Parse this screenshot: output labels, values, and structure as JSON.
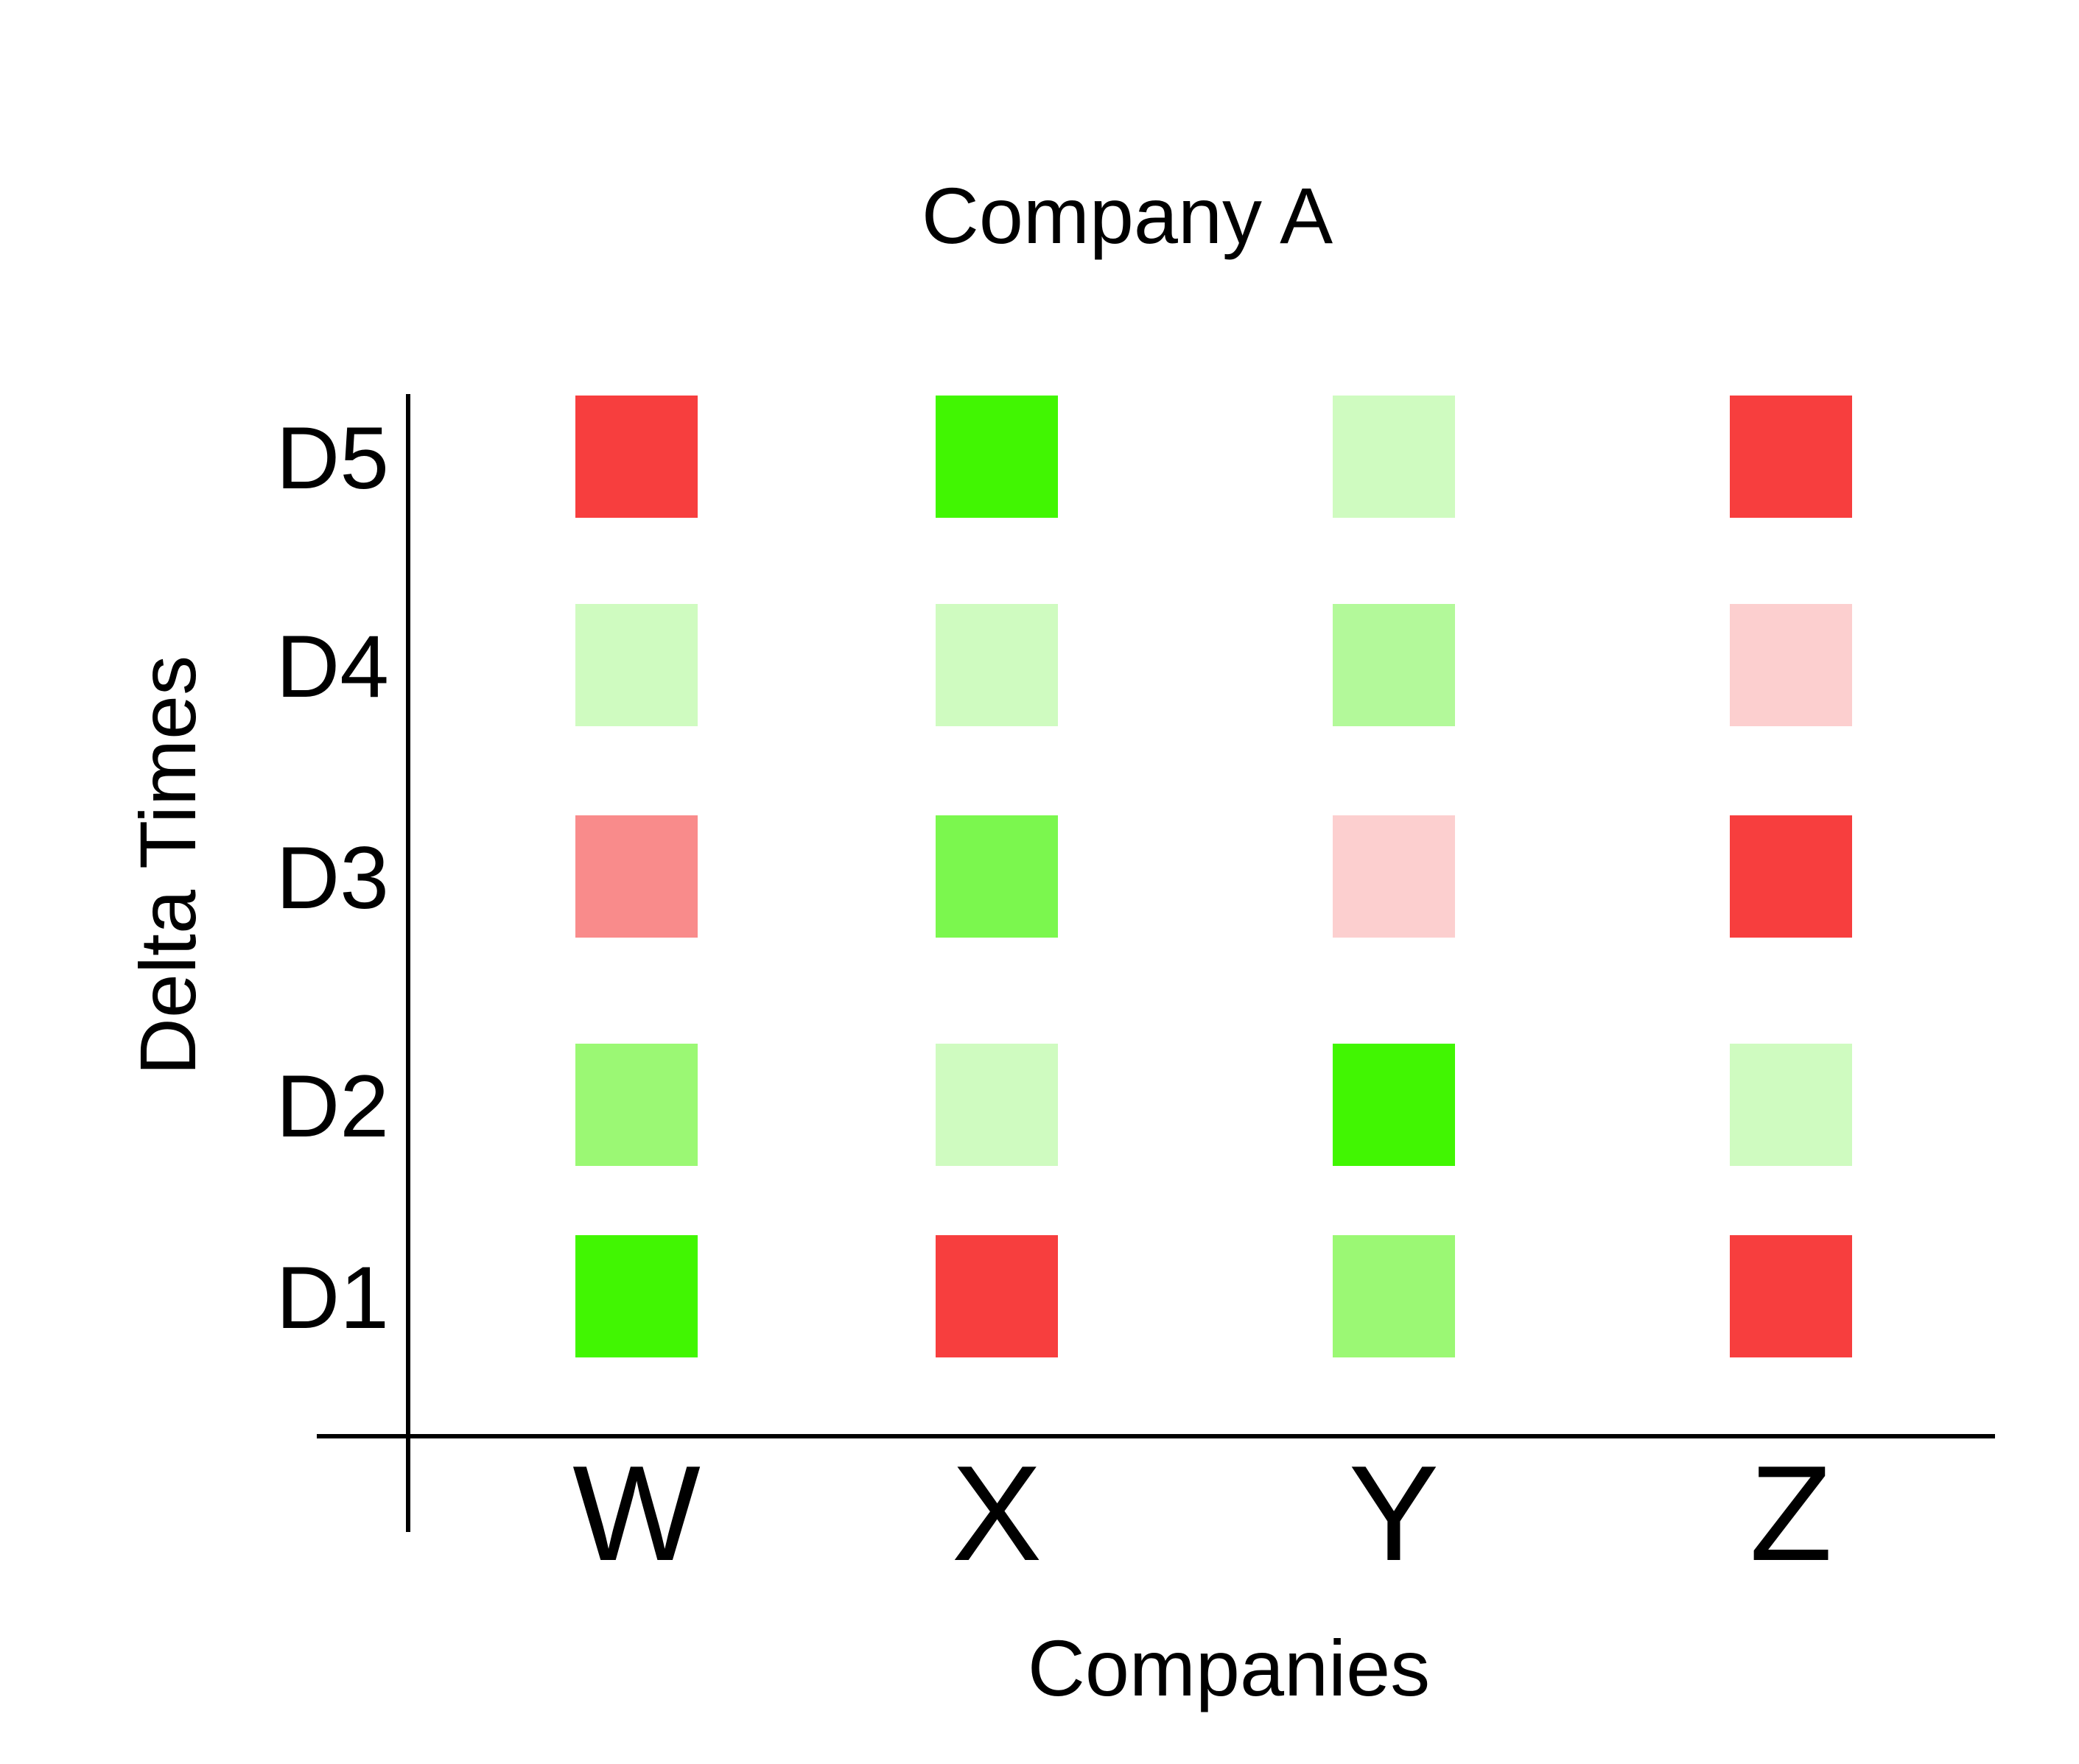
{
  "chart_data": {
    "type": "heatmap",
    "title": "Company A",
    "xlabel": "Companies",
    "ylabel": "Delta Times",
    "x_categories": [
      "W",
      "X",
      "Y",
      "Z"
    ],
    "y_categories": [
      "D1",
      "D2",
      "D3",
      "D4",
      "D5"
    ],
    "cells": [
      {
        "x": "W",
        "y": "D5",
        "color": "#f73e3e"
      },
      {
        "x": "X",
        "y": "D5",
        "color": "#41f602"
      },
      {
        "x": "Y",
        "y": "D5",
        "color": "#cffbc0"
      },
      {
        "x": "Z",
        "y": "D5",
        "color": "#f73e3e"
      },
      {
        "x": "W",
        "y": "D4",
        "color": "#cffbc0"
      },
      {
        "x": "X",
        "y": "D4",
        "color": "#cffbc0"
      },
      {
        "x": "Y",
        "y": "D4",
        "color": "#b3f99a"
      },
      {
        "x": "Z",
        "y": "D4",
        "color": "#fccfcf"
      },
      {
        "x": "W",
        "y": "D3",
        "color": "#f98b8b"
      },
      {
        "x": "X",
        "y": "D3",
        "color": "#7bf74e"
      },
      {
        "x": "Y",
        "y": "D3",
        "color": "#fccfcf"
      },
      {
        "x": "Z",
        "y": "D3",
        "color": "#f73e3e"
      },
      {
        "x": "W",
        "y": "D2",
        "color": "#9bf874"
      },
      {
        "x": "X",
        "y": "D2",
        "color": "#cffbc0"
      },
      {
        "x": "Y",
        "y": "D2",
        "color": "#41f602"
      },
      {
        "x": "Z",
        "y": "D2",
        "color": "#cffbc0"
      },
      {
        "x": "W",
        "y": "D1",
        "color": "#41f602"
      },
      {
        "x": "X",
        "y": "D1",
        "color": "#f73e3e"
      },
      {
        "x": "Y",
        "y": "D1",
        "color": "#9bf874"
      },
      {
        "x": "Z",
        "y": "D1",
        "color": "#f73e3e"
      }
    ],
    "grid": false,
    "legend": "none"
  }
}
